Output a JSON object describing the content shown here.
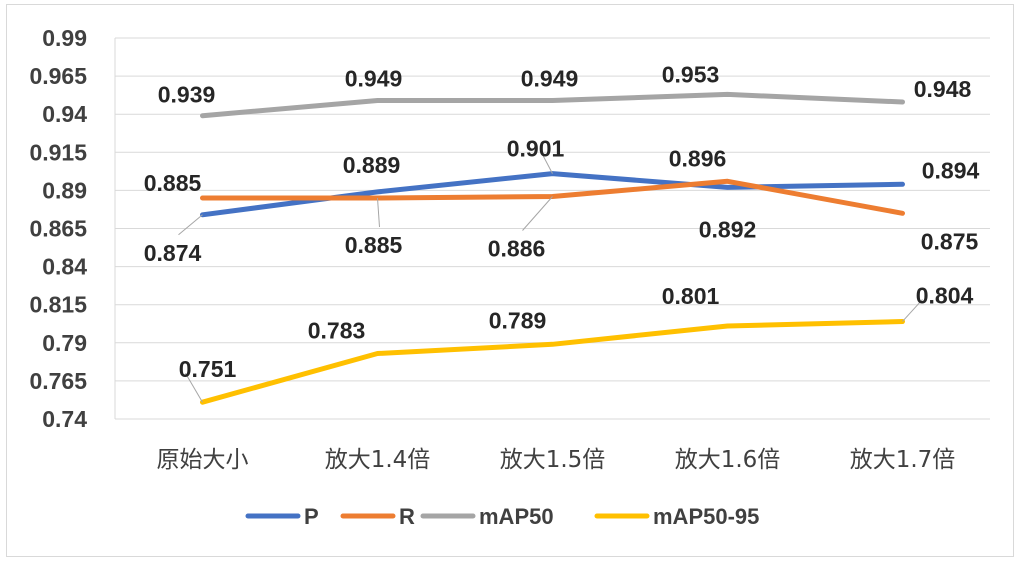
{
  "chart_data": {
    "type": "line",
    "categories": [
      "原始大小",
      "放大1.4倍",
      "放大1.5倍",
      "放大1.6倍",
      "放大1.7倍"
    ],
    "ylim": [
      0.74,
      0.99
    ],
    "yticks": [
      "0.99",
      "0.965",
      "0.94",
      "0.915",
      "0.89",
      "0.865",
      "0.84",
      "0.815",
      "0.79",
      "0.765",
      "0.74"
    ],
    "grid": true,
    "legend_position": "bottom",
    "series": [
      {
        "name": "P",
        "color": "#4472C4",
        "values": [
          0.874,
          0.889,
          0.901,
          0.892,
          0.894
        ],
        "labels": [
          "0.874",
          "0.889",
          "0.901",
          "0.892",
          "0.894"
        ]
      },
      {
        "name": "R",
        "color": "#ED7D31",
        "values": [
          0.885,
          0.885,
          0.886,
          0.896,
          0.875
        ],
        "labels": [
          "0.885",
          "0.885",
          "0.886",
          "0.896",
          "0.875"
        ]
      },
      {
        "name": "mAP50",
        "color": "#A5A5A5",
        "values": [
          0.939,
          0.949,
          0.949,
          0.953,
          0.948
        ],
        "labels": [
          "0.939",
          "0.949",
          "0.949",
          "0.953",
          "0.948"
        ]
      },
      {
        "name": "mAP50-95",
        "color": "#FFC000",
        "values": [
          0.751,
          0.783,
          0.789,
          0.801,
          0.804
        ],
        "labels": [
          "0.751",
          "0.783",
          "0.789",
          "0.801",
          "0.804"
        ]
      }
    ]
  }
}
